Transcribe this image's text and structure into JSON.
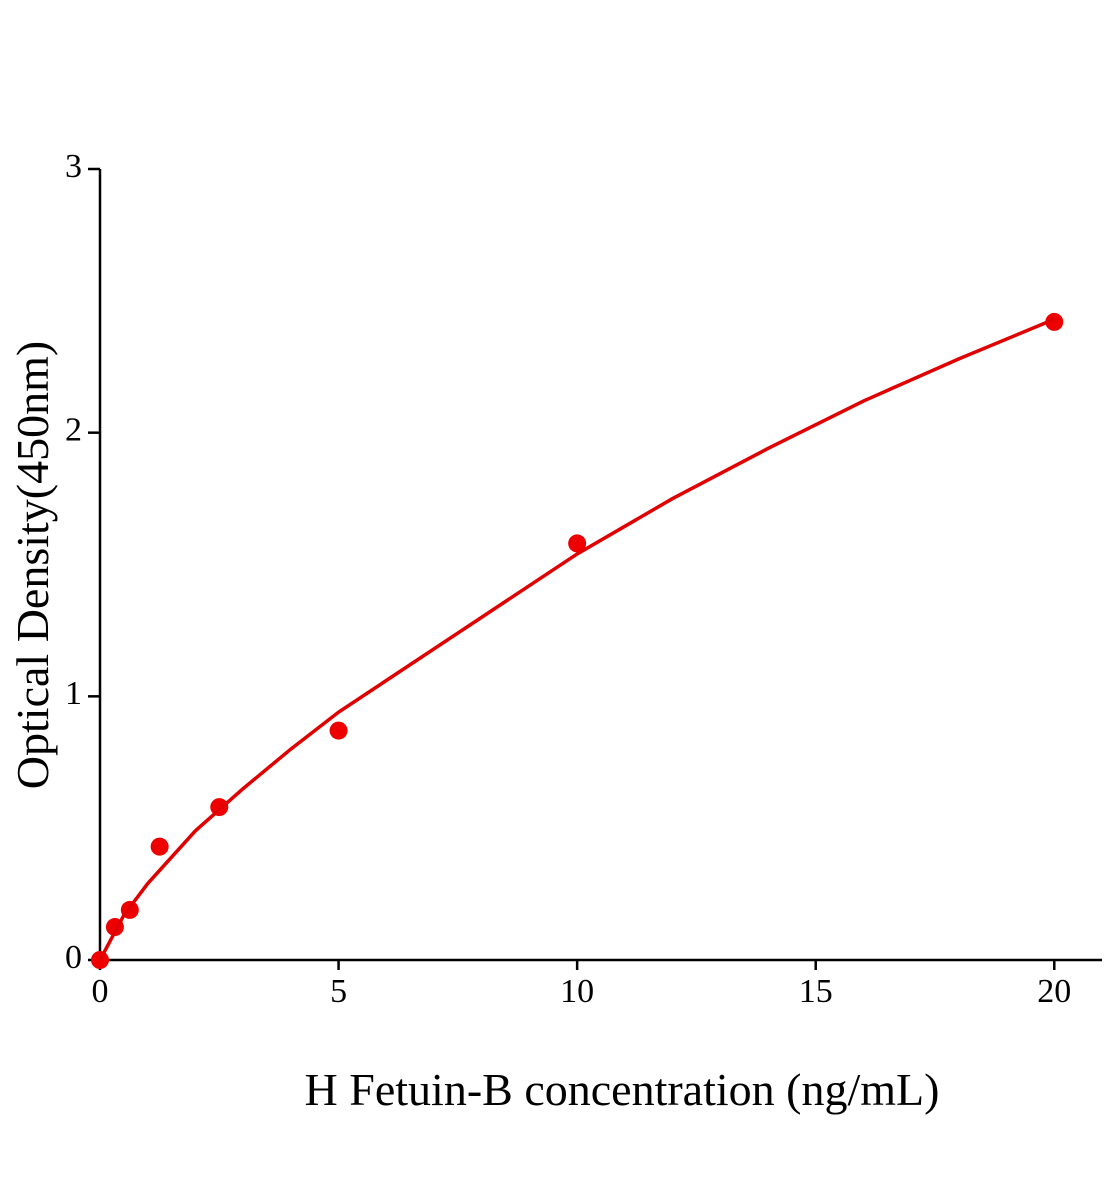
{
  "chart_data": {
    "type": "scatter",
    "x_label": "H Fetuin-B concentration (ng/mL)",
    "y_label": "Optical Density(450nm)",
    "xlim": [
      0,
      21
    ],
    "xticks": [
      0,
      5,
      10,
      15,
      20
    ],
    "ylim": [
      0,
      3
    ],
    "yticks": [
      0,
      1,
      2,
      3
    ],
    "series": [
      {
        "style": "points",
        "color": "#ee0000",
        "x": [
          0,
          0.3125,
          0.625,
          1.25,
          2.5,
          5,
          10,
          20
        ],
        "values": [
          0,
          0.125,
          0.19,
          0.43,
          0.58,
          0.87,
          1.58,
          2.42
        ]
      },
      {
        "style": "line",
        "color": "#e00000",
        "x": [
          0,
          0.5,
          1,
          2,
          3,
          4,
          5,
          6,
          8,
          10,
          12,
          14,
          16,
          18,
          20
        ],
        "values": [
          0,
          0.17,
          0.29,
          0.49,
          0.65,
          0.8,
          0.94,
          1.06,
          1.3,
          1.54,
          1.75,
          1.94,
          2.12,
          2.28,
          2.43
        ]
      }
    ]
  }
}
